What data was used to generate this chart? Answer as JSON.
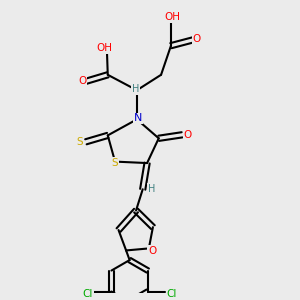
{
  "bg_color": "#ebebeb",
  "atom_colors": {
    "O": "#ff0000",
    "N": "#0000cc",
    "S": "#ccaa00",
    "Cl": "#00aa00",
    "C": "#000000",
    "H": "#408080"
  },
  "bond_color": "#000000",
  "bond_width": 1.5
}
